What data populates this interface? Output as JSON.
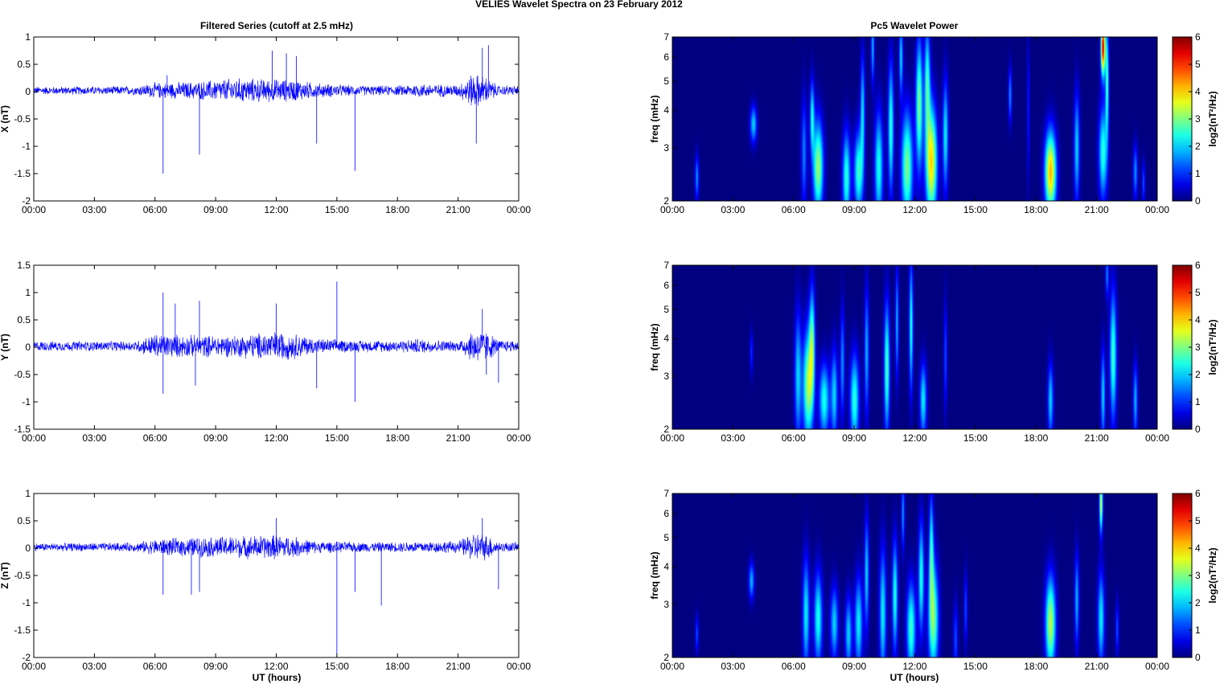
{
  "figure": {
    "title": "VELIES Wavelet Spectra on 23 February  2012",
    "left_title": "Filtered Series (cutoff at 2.5 mHz)",
    "right_title": "Pc5 Wavelet Power",
    "xlabel": "UT (hours)"
  },
  "colors": {
    "trace": "#0000ff",
    "background": "#00008f",
    "axis": "#000000"
  },
  "chart_data": [
    {
      "type": "line",
      "name": "x-series",
      "ylabel": "X (nT)",
      "xlim": [
        0,
        24
      ],
      "ylim": [
        -2,
        1
      ],
      "x_ticks": [
        "00:00",
        "03:00",
        "06:00",
        "09:00",
        "12:00",
        "15:00",
        "18:00",
        "21:00",
        "00:00"
      ],
      "y_ticks": [
        "1",
        "0.5",
        "0",
        "-0.5",
        "-1",
        "-1.5",
        "-2"
      ],
      "y_tick_values": [
        1,
        0.5,
        0,
        -0.5,
        -1,
        -1.5,
        -2
      ],
      "noise_profile": [
        [
          0,
          0.08
        ],
        [
          5,
          0.09
        ],
        [
          6,
          0.16
        ],
        [
          8,
          0.18
        ],
        [
          10,
          0.25
        ],
        [
          13,
          0.22
        ],
        [
          14,
          0.15
        ],
        [
          16,
          0.1
        ],
        [
          18,
          0.1
        ],
        [
          19,
          0.14
        ],
        [
          21,
          0.12
        ],
        [
          21.7,
          0.35
        ],
        [
          22.3,
          0.3
        ],
        [
          23,
          0.1
        ],
        [
          24,
          0.1
        ]
      ],
      "spikes": [
        [
          6.4,
          -1.5
        ],
        [
          8.2,
          -1.15
        ],
        [
          6.6,
          0.3
        ],
        [
          11.8,
          0.75
        ],
        [
          15.9,
          -1.45
        ],
        [
          14,
          -0.95
        ],
        [
          12.5,
          0.7
        ],
        [
          21.9,
          -0.95
        ],
        [
          22.5,
          0.85
        ],
        [
          22.2,
          0.8
        ],
        [
          13,
          0.65
        ]
      ]
    },
    {
      "type": "line",
      "name": "y-series",
      "ylabel": "Y (nT)",
      "xlim": [
        0,
        24
      ],
      "ylim": [
        -1.5,
        1.5
      ],
      "x_ticks": [
        "00:00",
        "03:00",
        "06:00",
        "09:00",
        "12:00",
        "15:00",
        "18:00",
        "21:00",
        "00:00"
      ],
      "y_ticks": [
        "1.5",
        "1",
        "0.5",
        "0",
        "-0.5",
        "-1",
        "-1.5"
      ],
      "y_tick_values": [
        1.5,
        1,
        0.5,
        0,
        -0.5,
        -1,
        -1.5
      ],
      "noise_profile": [
        [
          0,
          0.1
        ],
        [
          5,
          0.1
        ],
        [
          6,
          0.25
        ],
        [
          8,
          0.22
        ],
        [
          10,
          0.22
        ],
        [
          12,
          0.3
        ],
        [
          13,
          0.25
        ],
        [
          14,
          0.15
        ],
        [
          16,
          0.12
        ],
        [
          18,
          0.12
        ],
        [
          19,
          0.15
        ],
        [
          21,
          0.1
        ],
        [
          21.8,
          0.35
        ],
        [
          22.5,
          0.3
        ],
        [
          23,
          0.12
        ],
        [
          24,
          0.12
        ]
      ],
      "spikes": [
        [
          6.4,
          1.0
        ],
        [
          6.4,
          -0.85
        ],
        [
          7.0,
          0.8
        ],
        [
          8.2,
          0.85
        ],
        [
          8.0,
          -0.7
        ],
        [
          12.0,
          0.8
        ],
        [
          14.0,
          -0.75
        ],
        [
          15.0,
          1.2
        ],
        [
          15.9,
          -1.0
        ],
        [
          22.2,
          0.7
        ],
        [
          22.4,
          -0.5
        ],
        [
          23.0,
          -0.65
        ]
      ]
    },
    {
      "type": "line",
      "name": "z-series",
      "ylabel": "Z (nT)",
      "xlim": [
        0,
        24
      ],
      "ylim": [
        -2,
        1
      ],
      "x_ticks": [
        "00:00",
        "03:00",
        "06:00",
        "09:00",
        "12:00",
        "15:00",
        "18:00",
        "21:00",
        "00:00"
      ],
      "y_ticks": [
        "1",
        "0.5",
        "0",
        "-0.5",
        "-1",
        "-1.5",
        "-2"
      ],
      "y_tick_values": [
        1,
        0.5,
        0,
        -0.5,
        -1,
        -1.5,
        -2
      ],
      "noise_profile": [
        [
          0,
          0.08
        ],
        [
          5,
          0.09
        ],
        [
          6,
          0.16
        ],
        [
          8,
          0.2
        ],
        [
          10,
          0.22
        ],
        [
          12,
          0.25
        ],
        [
          13,
          0.2
        ],
        [
          14,
          0.12
        ],
        [
          16,
          0.1
        ],
        [
          18,
          0.1
        ],
        [
          19,
          0.12
        ],
        [
          21,
          0.12
        ],
        [
          21.8,
          0.3
        ],
        [
          22.5,
          0.25
        ],
        [
          23,
          0.1
        ],
        [
          24,
          0.1
        ]
      ],
      "spikes": [
        [
          6.4,
          -0.85
        ],
        [
          7.8,
          -0.85
        ],
        [
          8.2,
          -0.8
        ],
        [
          15.0,
          -1.95
        ],
        [
          15.9,
          -0.8
        ],
        [
          17.2,
          -1.05
        ],
        [
          22.2,
          0.55
        ],
        [
          23.0,
          -0.75
        ],
        [
          12.0,
          0.55
        ]
      ]
    },
    {
      "type": "heatmap",
      "name": "x-power",
      "ylabel": "freq (mHz)",
      "colorbar_label": "log2(nT²/Hz)",
      "xlim": [
        0,
        24
      ],
      "ylim": [
        2,
        7
      ],
      "yscale": "log",
      "clim": [
        0,
        6
      ],
      "x_ticks": [
        "00:00",
        "03:00",
        "06:00",
        "09:00",
        "12:00",
        "15:00",
        "18:00",
        "21:00",
        "00:00"
      ],
      "y_ticks": [
        "7",
        "6",
        "5",
        "4",
        "3",
        "2"
      ],
      "y_tick_values": [
        7,
        6,
        5,
        4,
        3,
        2
      ],
      "cbar_ticks": [
        "6",
        "5",
        "4",
        "3",
        "2",
        "1",
        "0"
      ],
      "cbar_tick_values": [
        6,
        5,
        4,
        3,
        2,
        1,
        0
      ],
      "blobs": [
        [
          1.2,
          2.4,
          0.07,
          0.12,
          1.6
        ],
        [
          4.0,
          3.6,
          0.12,
          0.1,
          2.0
        ],
        [
          6.5,
          2.9,
          0.1,
          0.3,
          1.5
        ],
        [
          7.2,
          2.6,
          0.18,
          0.25,
          3.2
        ],
        [
          6.9,
          3.8,
          0.08,
          0.2,
          2.2
        ],
        [
          8.6,
          2.4,
          0.14,
          0.25,
          2.5
        ],
        [
          9.2,
          2.5,
          0.16,
          0.22,
          2.6
        ],
        [
          9.4,
          4.0,
          0.08,
          0.3,
          2.0
        ],
        [
          10.2,
          2.6,
          0.15,
          0.3,
          2.4
        ],
        [
          10.8,
          3.5,
          0.1,
          0.35,
          2.5
        ],
        [
          11.6,
          2.6,
          0.2,
          0.3,
          3.0
        ],
        [
          12.2,
          4.2,
          0.12,
          0.35,
          3.0
        ],
        [
          12.8,
          2.7,
          0.2,
          0.3,
          4.0
        ],
        [
          12.6,
          5.0,
          0.1,
          0.3,
          2.5
        ],
        [
          13.5,
          3.3,
          0.1,
          0.3,
          2.2
        ],
        [
          16.7,
          4.5,
          0.06,
          0.15,
          1.6
        ],
        [
          18.7,
          2.5,
          0.2,
          0.22,
          4.2
        ],
        [
          20.0,
          3.0,
          0.1,
          0.3,
          2.0
        ],
        [
          21.3,
          2.9,
          0.15,
          0.25,
          2.5
        ],
        [
          21.3,
          6.5,
          0.08,
          0.15,
          5.5
        ],
        [
          21.5,
          5.0,
          0.06,
          0.3,
          2.6
        ],
        [
          22.9,
          2.5,
          0.08,
          0.15,
          1.6
        ],
        [
          23.3,
          2.3,
          0.06,
          0.12,
          1.2
        ],
        [
          17.6,
          4.0,
          0.05,
          0.4,
          0.9
        ],
        [
          11.3,
          6.0,
          0.07,
          0.2,
          2.0
        ],
        [
          9.9,
          6.5,
          0.06,
          0.2,
          1.8
        ]
      ]
    },
    {
      "type": "heatmap",
      "name": "y-power",
      "ylabel": "freq (mHz)",
      "colorbar_label": "log2(nT²/Hz)",
      "xlim": [
        0,
        24
      ],
      "ylim": [
        2,
        7
      ],
      "yscale": "log",
      "clim": [
        0,
        6
      ],
      "x_ticks": [
        "00:00",
        "03:00",
        "06:00",
        "09:00",
        "12:00",
        "15:00",
        "18:00",
        "21:00",
        "00:00"
      ],
      "y_ticks": [
        "7",
        "6",
        "5",
        "4",
        "3",
        "2"
      ],
      "y_tick_values": [
        7,
        6,
        5,
        4,
        3,
        2
      ],
      "cbar_ticks": [
        "6",
        "5",
        "4",
        "3",
        "2",
        "1",
        "0"
      ],
      "cbar_tick_values": [
        6,
        5,
        4,
        3,
        2,
        1,
        0
      ],
      "blobs": [
        [
          3.9,
          3.6,
          0.06,
          0.12,
          1.0
        ],
        [
          6.2,
          3.0,
          0.12,
          0.35,
          2.0
        ],
        [
          6.7,
          2.8,
          0.18,
          0.3,
          3.2
        ],
        [
          6.9,
          3.9,
          0.1,
          0.3,
          2.5
        ],
        [
          7.5,
          2.5,
          0.18,
          0.2,
          2.4
        ],
        [
          8.0,
          2.6,
          0.12,
          0.25,
          2.0
        ],
        [
          8.4,
          3.3,
          0.08,
          0.3,
          1.6
        ],
        [
          9.0,
          2.5,
          0.16,
          0.25,
          2.5
        ],
        [
          9.6,
          3.6,
          0.08,
          0.35,
          1.8
        ],
        [
          10.6,
          3.2,
          0.1,
          0.35,
          2.7
        ],
        [
          11.1,
          4.5,
          0.06,
          0.3,
          1.8
        ],
        [
          11.8,
          4.4,
          0.07,
          0.35,
          2.4
        ],
        [
          12.4,
          2.5,
          0.12,
          0.2,
          2.2
        ],
        [
          13.5,
          3.5,
          0.06,
          0.3,
          1.2
        ],
        [
          18.7,
          2.5,
          0.1,
          0.2,
          2.0
        ],
        [
          21.3,
          2.6,
          0.08,
          0.25,
          2.0
        ],
        [
          21.8,
          3.5,
          0.12,
          0.35,
          2.6
        ],
        [
          22.9,
          2.5,
          0.08,
          0.2,
          1.8
        ],
        [
          21.5,
          6.5,
          0.06,
          0.12,
          1.5
        ]
      ]
    },
    {
      "type": "heatmap",
      "name": "z-power",
      "ylabel": "freq (mHz)",
      "colorbar_label": "log2(nT²/Hz)",
      "xlim": [
        0,
        24
      ],
      "ylim": [
        2,
        7
      ],
      "yscale": "log",
      "clim": [
        0,
        6
      ],
      "x_ticks": [
        "00:00",
        "03:00",
        "06:00",
        "09:00",
        "12:00",
        "15:00",
        "18:00",
        "21:00",
        "00:00"
      ],
      "y_ticks": [
        "7",
        "6",
        "5",
        "4",
        "3",
        "2"
      ],
      "y_tick_values": [
        7,
        6,
        5,
        4,
        3,
        2
      ],
      "cbar_ticks": [
        "6",
        "5",
        "4",
        "3",
        "2",
        "1",
        "0"
      ],
      "cbar_tick_values": [
        6,
        5,
        4,
        3,
        2,
        1,
        0
      ],
      "blobs": [
        [
          1.2,
          2.4,
          0.06,
          0.1,
          1.2
        ],
        [
          3.9,
          3.6,
          0.1,
          0.1,
          1.8
        ],
        [
          6.6,
          2.8,
          0.12,
          0.3,
          2.2
        ],
        [
          7.2,
          2.7,
          0.15,
          0.25,
          2.4
        ],
        [
          8.0,
          2.6,
          0.14,
          0.2,
          2.0
        ],
        [
          8.7,
          2.4,
          0.12,
          0.2,
          2.0
        ],
        [
          9.2,
          2.6,
          0.14,
          0.25,
          2.2
        ],
        [
          9.6,
          3.8,
          0.08,
          0.3,
          2.0
        ],
        [
          10.4,
          2.8,
          0.12,
          0.35,
          2.2
        ],
        [
          11.0,
          3.2,
          0.1,
          0.3,
          2.4
        ],
        [
          11.8,
          2.5,
          0.16,
          0.25,
          2.6
        ],
        [
          12.3,
          3.7,
          0.1,
          0.3,
          2.4
        ],
        [
          12.9,
          2.7,
          0.18,
          0.3,
          3.0
        ],
        [
          12.8,
          4.6,
          0.08,
          0.3,
          2.2
        ],
        [
          14.0,
          2.3,
          0.08,
          0.2,
          1.2
        ],
        [
          14.5,
          2.9,
          0.06,
          0.2,
          1.2
        ],
        [
          18.7,
          2.6,
          0.18,
          0.25,
          3.4
        ],
        [
          20.0,
          3.1,
          0.08,
          0.25,
          1.8
        ],
        [
          21.2,
          2.7,
          0.12,
          0.25,
          2.2
        ],
        [
          21.2,
          6.5,
          0.06,
          0.15,
          3.5
        ],
        [
          22.0,
          2.5,
          0.06,
          0.15,
          1.2
        ],
        [
          11.4,
          6.0,
          0.06,
          0.2,
          1.6
        ]
      ]
    }
  ]
}
